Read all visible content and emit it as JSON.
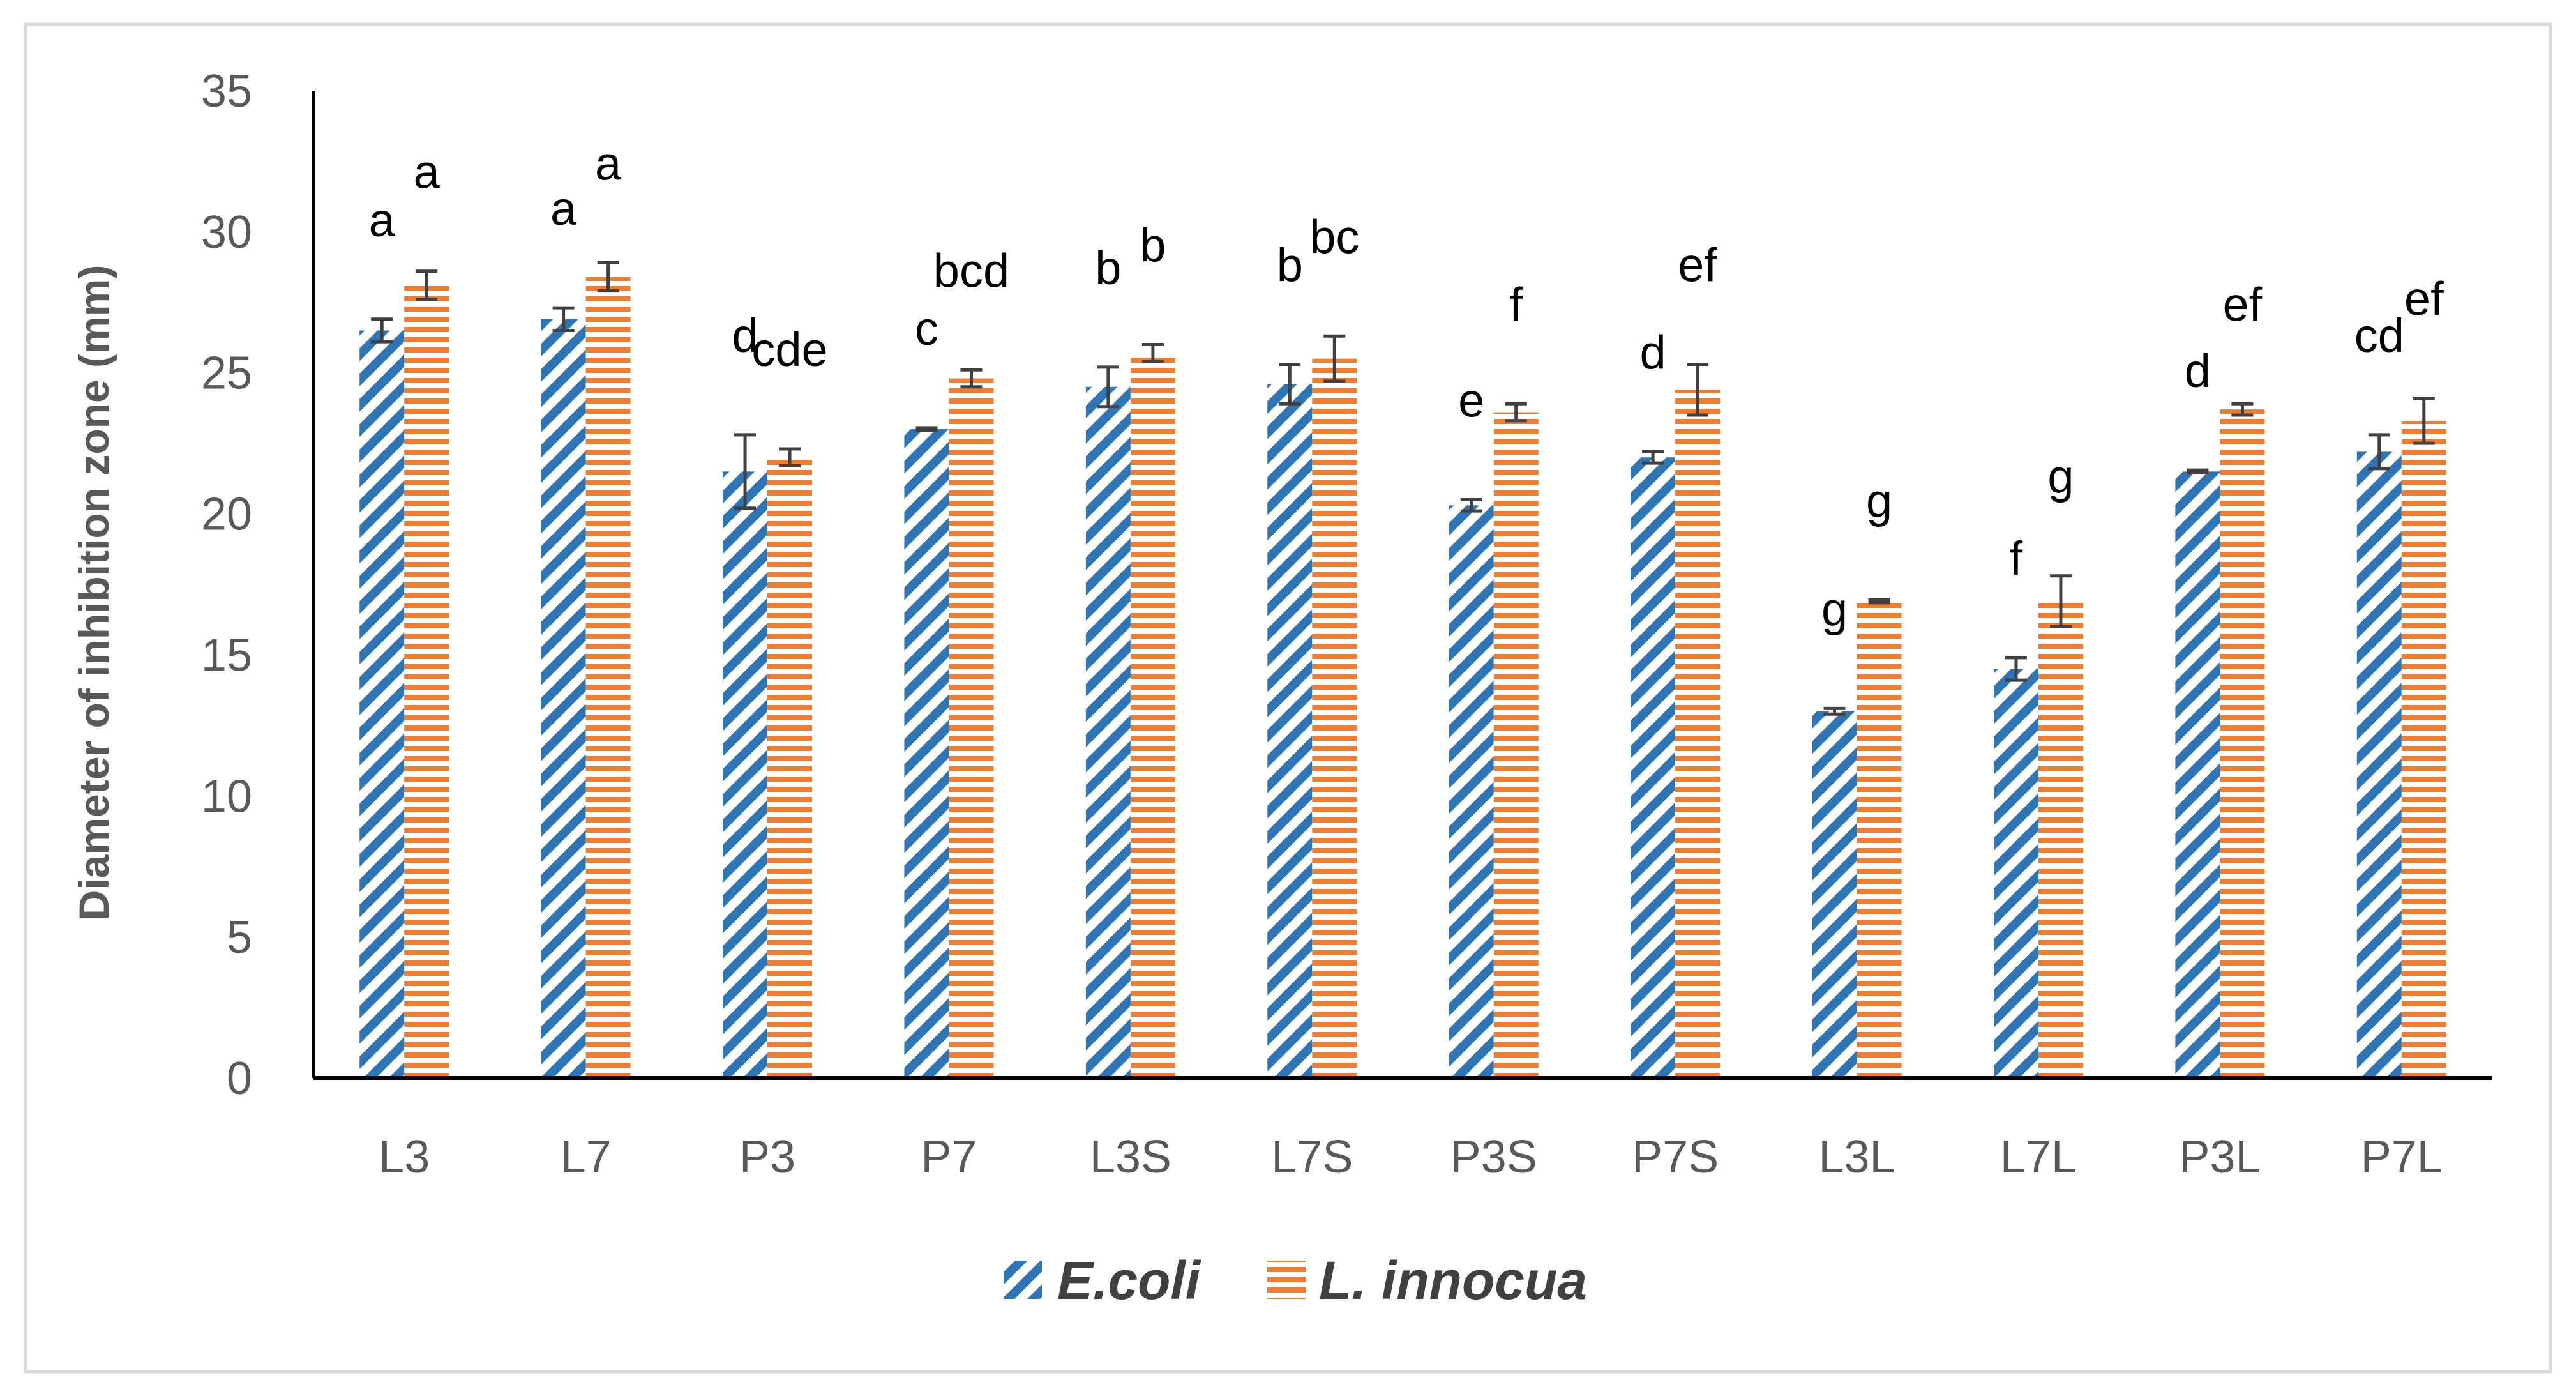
{
  "chart_data": {
    "type": "bar",
    "title": "",
    "xlabel": "",
    "ylabel": "Diameter of inhibition zone (mm)",
    "ylim": [
      0,
      35
    ],
    "yticks": [
      0,
      5,
      10,
      15,
      20,
      25,
      30,
      35
    ],
    "grid": false,
    "legend_position": "bottom",
    "categories": [
      "L3",
      "L7",
      "P3",
      "P7",
      "L3S",
      "L7S",
      "P3S",
      "P7S",
      "L3L",
      "L7L",
      "P3L",
      "P7L"
    ],
    "series": [
      {
        "name": "E.coli",
        "pattern": "diagonal-stripes",
        "color": "#2E75B6",
        "values": [
          26.5,
          26.9,
          21.5,
          23.0,
          24.5,
          24.6,
          20.3,
          22.0,
          13.0,
          14.5,
          21.5,
          22.2
        ],
        "errors": [
          0.4,
          0.4,
          1.3,
          0.05,
          0.7,
          0.7,
          0.2,
          0.2,
          0.1,
          0.4,
          0.05,
          0.6
        ],
        "letters": [
          "a",
          "a",
          "d",
          "c",
          "b",
          "b",
          "e",
          "d",
          "g",
          "f",
          "d",
          "cd"
        ]
      },
      {
        "name": "L. innocua",
        "pattern": "horizontal-stripes",
        "color": "#ED7D31",
        "values": [
          28.1,
          28.4,
          22.0,
          24.8,
          25.7,
          25.5,
          23.6,
          24.4,
          16.9,
          16.9,
          23.7,
          23.3
        ],
        "errors": [
          0.5,
          0.5,
          0.3,
          0.3,
          0.3,
          0.8,
          0.3,
          0.9,
          0.05,
          0.9,
          0.2,
          0.8
        ],
        "letters": [
          "a",
          "a",
          "cde",
          "bcd",
          "b",
          "bc",
          "f",
          "ef",
          "g",
          "g",
          "ef",
          "ef"
        ]
      }
    ]
  }
}
